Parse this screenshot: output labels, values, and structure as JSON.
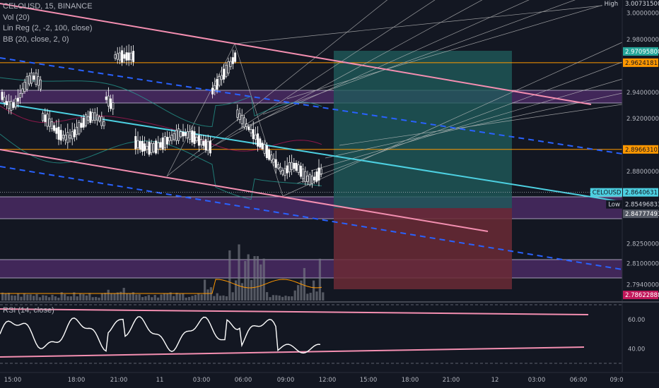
{
  "header": {
    "title": "CELOUSD, 15, BINANCE",
    "indicators": [
      "Vol (20)",
      "Lin Reg (2, -2, 100, close)",
      "BB (20, close, 2, 0)"
    ],
    "rsi_title": "RSI (14, close)"
  },
  "colors": {
    "background": "#131722",
    "candle": "#ffffff",
    "pink_channel": "#f48fb1",
    "blue_dashed": "#2962ff",
    "cyan_regression": "#4dd0e1",
    "orange_level": "#ff9800",
    "purple_zone": "#4a2a63",
    "profit_zone": "#1f5a5a",
    "loss_zone": "#6b2a35",
    "bb_band": "#26a69a",
    "bb_basis": "#c2185b"
  },
  "chart_data": [
    {
      "type": "candlestick",
      "symbol": "CELOUSD",
      "timeframe": "15",
      "exchange": "BINANCE",
      "ylim": [
        2.782,
        3.0073
      ],
      "price_axis_ticks": [
        "3.00000000",
        "2.98000000",
        "2.94000000",
        "2.92000000",
        "2.88000000",
        "2.82500000",
        "2.81000000",
        "2.79400000"
      ],
      "time_axis_ticks": [
        "15:00",
        "18:00",
        "21:00",
        "11",
        "03:00",
        "06:00",
        "09:00",
        "12:00",
        "15:00",
        "18:00",
        "21:00",
        "12",
        "03:00",
        "06:00",
        "09:0"
      ],
      "markers": [
        {
          "label": "High",
          "value": "3.00731500",
          "price": 3.007315
        },
        {
          "label": "",
          "value": "2.97095800",
          "price": 2.970958
        },
        {
          "label": "",
          "value": "2.96241813",
          "price": 2.96241813
        },
        {
          "label": "",
          "value": "2.89663102",
          "price": 2.89663102
        },
        {
          "label": "CELOUSD",
          "value": "2.86406311",
          "price": 2.86406311
        },
        {
          "label": "Low",
          "value": "2.85496833",
          "price": 2.85496833
        },
        {
          "label": "",
          "value": "2.84777493",
          "price": 2.84777493
        },
        {
          "label": "",
          "value": "2.78622888",
          "price": 2.78622888
        }
      ],
      "horizontal_levels": [
        2.96241813,
        2.89663102
      ],
      "current_price": 2.86406311,
      "low": 2.85496833,
      "high": 3.007315
    },
    {
      "type": "line",
      "title": "RSI (14, close)",
      "ylim": [
        30,
        70
      ],
      "yticks": [
        "60.00",
        "40.00"
      ],
      "levels": [
        70,
        30
      ]
    }
  ]
}
